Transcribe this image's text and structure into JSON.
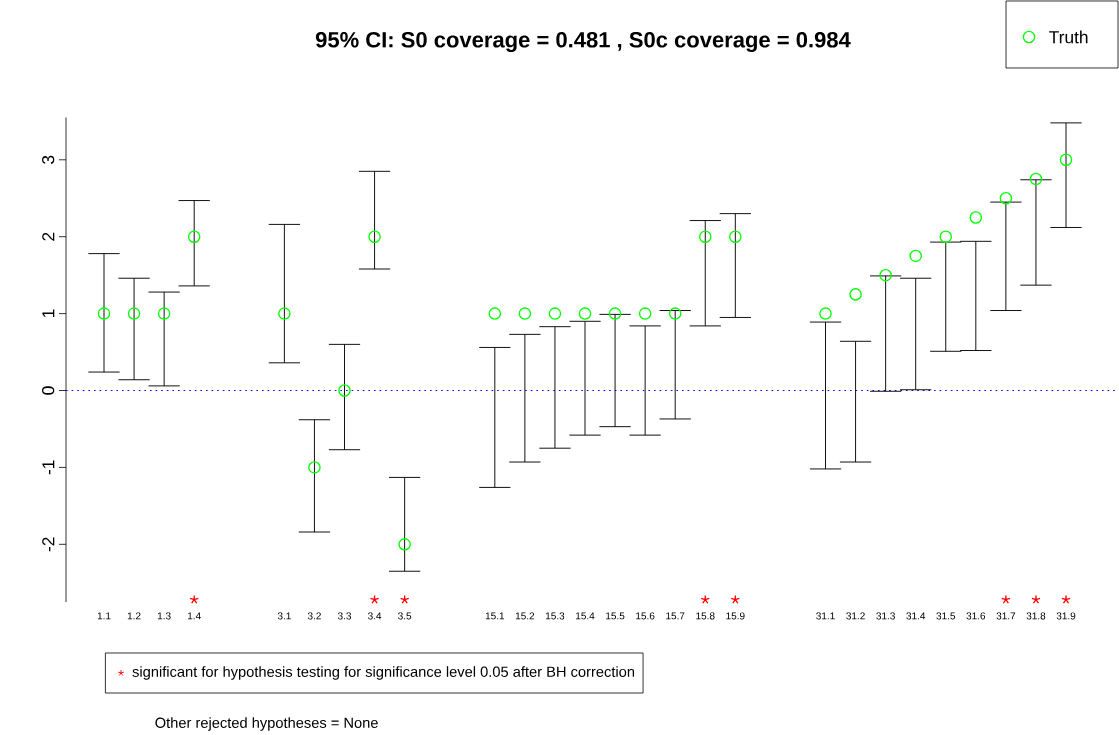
{
  "chart_data": {
    "type": "scatter",
    "title": "95% CI: S0 coverage = 0.481 , S0c coverage = 0.984",
    "categories": [
      "1.1",
      "1.2",
      "1.3",
      "1.4",
      null,
      null,
      "3.1",
      "3.2",
      "3.3",
      "3.4",
      "3.5",
      null,
      null,
      "15.1",
      "15.2",
      "15.3",
      "15.4",
      "15.5",
      "15.6",
      "15.7",
      "15.8",
      "15.9",
      null,
      null,
      "31.1",
      "31.2",
      "31.3",
      "31.4",
      "31.5",
      "31.6",
      "31.7",
      "31.8",
      "31.9"
    ],
    "series": [
      {
        "name": "Truth",
        "color": "#00ff00",
        "marker": "circle",
        "values": [
          1,
          1,
          1,
          2,
          null,
          null,
          1,
          -1,
          0,
          2,
          -2,
          null,
          null,
          1,
          1,
          1,
          1,
          1,
          1,
          1,
          2,
          2,
          null,
          null,
          1,
          1.25,
          1.5,
          1.75,
          2,
          2.25,
          2.5,
          2.75,
          3
        ],
        "errors": [
          [
            0.24,
            1.78
          ],
          [
            0.14,
            1.46
          ],
          [
            0.06,
            1.28
          ],
          [
            1.36,
            2.47
          ],
          null,
          null,
          [
            0.36,
            2.16
          ],
          [
            -1.84,
            -0.38
          ],
          [
            -0.77,
            0.6
          ],
          [
            1.58,
            2.85
          ],
          [
            -2.35,
            -1.13
          ],
          null,
          null,
          [
            -1.26,
            0.56
          ],
          [
            -0.93,
            0.73
          ],
          [
            -0.75,
            0.83
          ],
          [
            -0.58,
            0.9
          ],
          [
            -0.47,
            0.99
          ],
          [
            -0.58,
            0.84
          ],
          [
            -0.37,
            1.04
          ],
          [
            0.84,
            2.21
          ],
          [
            0.95,
            2.3
          ],
          null,
          null,
          [
            -1.02,
            0.89
          ],
          [
            -0.93,
            0.64
          ],
          [
            -0.01,
            1.49
          ],
          [
            0.01,
            1.46
          ],
          [
            0.51,
            1.93
          ],
          [
            0.52,
            1.94
          ],
          [
            1.04,
            2.45
          ],
          [
            1.37,
            2.74
          ],
          [
            2.12,
            3.48
          ]
        ]
      },
      {
        "name": "significant for hypothesis testing for significance level 0.05 after BH correction",
        "color": "#ff0000",
        "marker": "cross",
        "x": [
          "1.4",
          "3.4",
          "3.5",
          "15.8",
          "15.9",
          "31.7",
          "31.8",
          "31.9"
        ],
        "values": [
          -2.72,
          -2.72,
          -2.72,
          -2.72,
          -2.72,
          -2.72,
          -2.72,
          -2.72
        ]
      }
    ],
    "ylim": [
      -2.75,
      3.55
    ],
    "yticks": [
      -2,
      -1,
      0,
      1,
      2,
      3
    ],
    "ref_lines": [
      {
        "axis": "y",
        "value": 0,
        "color": "#0000ff",
        "line_style": "dotted"
      }
    ],
    "legend": "top right",
    "annotations": [
      "Other rejected hypotheses = None"
    ]
  }
}
